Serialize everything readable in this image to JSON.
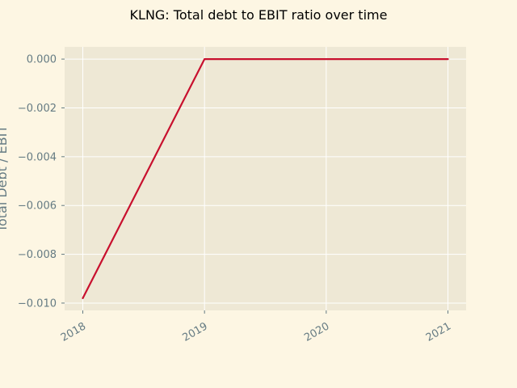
{
  "chart_data": {
    "type": "line",
    "title": "KLNG: Total debt to EBIT ratio over time",
    "xlabel": "",
    "ylabel": "Total Debt / EBIT",
    "x": [
      "2018",
      "2019",
      "2020",
      "2021"
    ],
    "series": [
      {
        "values": [
          -0.0098,
          0.0,
          0.0,
          0.0
        ]
      }
    ],
    "ylim": [
      -0.0103,
      0.0005
    ],
    "yticks": [
      0.0,
      -0.002,
      -0.004,
      -0.006,
      -0.008,
      -0.01
    ],
    "ytick_labels": [
      "0.000",
      "−0.002",
      "−0.004",
      "−0.006",
      "−0.008",
      "−0.010"
    ],
    "grid": true,
    "colors": {
      "background": "#fdf6e3",
      "plot_area": "#eee8d5",
      "grid": "#ffffff",
      "line": "#c8102e",
      "tick_text": "#657b83"
    }
  }
}
